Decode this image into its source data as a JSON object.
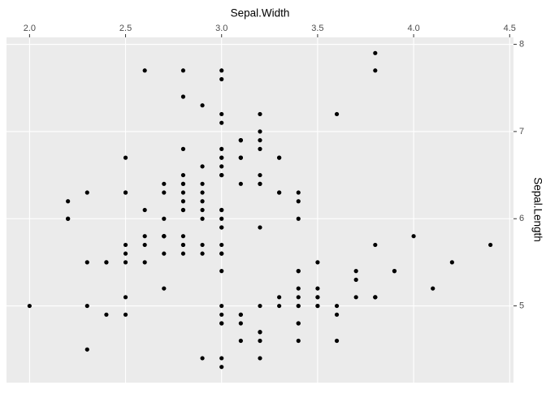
{
  "chart_data": {
    "type": "scatter",
    "x_label": "Sepal.Width",
    "y_label": "Sepal.Length",
    "x_axis_position": "top",
    "y_axis_position": "right",
    "color": "#000000",
    "grid": true,
    "xlim": [
      1.88,
      4.52
    ],
    "xticks": [
      {
        "value": 2.0,
        "label": "2.0"
      },
      2.5,
      {
        "value": 3.0,
        "label": "3.0"
      },
      3.5,
      {
        "value": 4.0,
        "label": "4.0"
      },
      4.5
    ],
    "ylim": [
      4.12,
      8.08
    ],
    "yticks": [
      5,
      6,
      7,
      8
    ],
    "x": [
      3.5,
      3.0,
      3.2,
      3.1,
      3.6,
      3.9,
      3.4,
      3.4,
      2.9,
      3.1,
      3.7,
      3.4,
      3.0,
      3.0,
      4.0,
      4.4,
      3.9,
      3.5,
      3.8,
      3.8,
      3.4,
      3.7,
      3.6,
      3.3,
      3.4,
      3.0,
      3.4,
      3.5,
      3.4,
      3.2,
      3.1,
      3.4,
      4.1,
      4.2,
      3.1,
      3.2,
      3.5,
      3.6,
      3.0,
      3.4,
      3.5,
      2.3,
      3.2,
      3.5,
      3.8,
      3.0,
      3.8,
      3.2,
      3.7,
      3.3,
      3.2,
      3.2,
      3.1,
      2.3,
      2.8,
      2.8,
      3.3,
      2.4,
      2.9,
      2.7,
      2.0,
      3.0,
      2.2,
      2.9,
      2.9,
      3.1,
      3.0,
      2.7,
      2.2,
      2.5,
      3.2,
      2.8,
      2.5,
      2.8,
      2.9,
      3.0,
      2.8,
      3.0,
      2.9,
      2.6,
      2.4,
      2.4,
      2.7,
      2.7,
      3.0,
      3.4,
      3.1,
      2.3,
      3.0,
      2.5,
      2.6,
      3.0,
      2.6,
      2.3,
      2.7,
      3.0,
      2.9,
      2.9,
      2.5,
      2.8,
      3.3,
      2.7,
      3.0,
      2.9,
      3.0,
      3.0,
      2.5,
      2.9,
      2.5,
      3.6,
      3.2,
      2.7,
      3.0,
      2.5,
      2.8,
      3.2,
      3.0,
      3.8,
      2.6,
      2.2,
      3.2,
      2.8,
      2.8,
      2.7,
      3.3,
      3.2,
      2.8,
      3.0,
      2.8,
      3.0,
      2.8,
      3.8,
      2.8,
      2.8,
      2.6,
      3.0,
      3.4,
      3.1,
      3.0,
      3.1,
      3.1,
      3.1,
      2.7,
      3.2,
      3.3,
      3.0,
      2.5,
      3.0,
      3.4,
      3.0
    ],
    "values": [
      5.1,
      4.9,
      4.7,
      4.6,
      5.0,
      5.4,
      4.6,
      5.0,
      4.4,
      4.9,
      5.4,
      4.8,
      4.8,
      4.3,
      5.8,
      5.7,
      5.4,
      5.1,
      5.7,
      5.1,
      5.4,
      5.1,
      4.6,
      5.1,
      4.8,
      5.0,
      5.0,
      5.2,
      5.2,
      4.7,
      4.8,
      5.4,
      5.2,
      5.5,
      4.9,
      5.0,
      5.5,
      4.9,
      4.4,
      5.1,
      5.0,
      4.5,
      4.4,
      5.0,
      5.1,
      4.8,
      5.1,
      4.6,
      5.3,
      5.0,
      7.0,
      6.4,
      6.9,
      5.5,
      6.5,
      5.7,
      6.3,
      4.9,
      6.6,
      5.2,
      5.0,
      5.9,
      6.0,
      6.1,
      5.6,
      6.7,
      5.6,
      5.8,
      6.2,
      5.6,
      5.9,
      6.1,
      6.3,
      6.1,
      6.4,
      6.6,
      6.8,
      6.7,
      6.0,
      5.7,
      5.5,
      5.5,
      5.8,
      6.0,
      5.4,
      6.0,
      6.7,
      6.3,
      5.6,
      5.5,
      5.5,
      6.1,
      5.8,
      5.0,
      5.6,
      5.7,
      5.7,
      6.2,
      5.1,
      5.7,
      6.3,
      5.8,
      7.1,
      6.3,
      6.5,
      7.6,
      4.9,
      7.3,
      6.7,
      7.2,
      6.5,
      6.4,
      6.8,
      5.7,
      5.8,
      6.4,
      6.5,
      7.7,
      7.7,
      6.0,
      6.9,
      5.6,
      7.7,
      6.3,
      6.7,
      7.2,
      6.2,
      6.1,
      6.4,
      7.2,
      7.4,
      7.9,
      6.4,
      6.3,
      6.1,
      7.7,
      6.3,
      6.4,
      6.0,
      6.9,
      6.7,
      6.9,
      5.8,
      6.8,
      6.7,
      6.7,
      6.3,
      6.5,
      6.2,
      5.9
    ]
  }
}
